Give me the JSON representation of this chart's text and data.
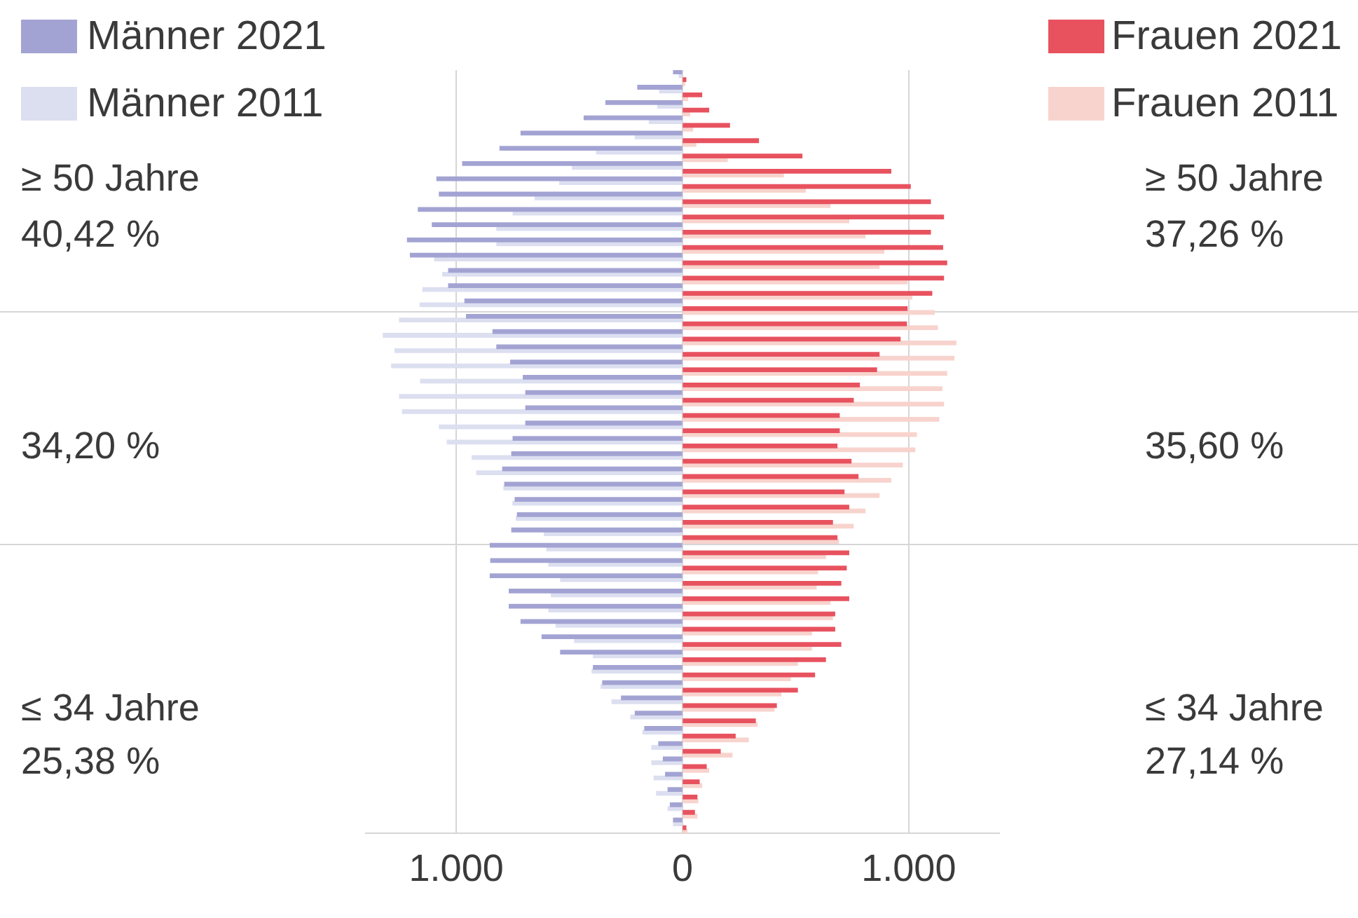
{
  "chart_data": {
    "type": "bar",
    "orientation": "horizontal",
    "categories": [
      null,
      null,
      null,
      null,
      null,
      null,
      null,
      null,
      null,
      null,
      null,
      null,
      null,
      null,
      null,
      null,
      null,
      null,
      null,
      null,
      null,
      null,
      null,
      null,
      null,
      null,
      null,
      null,
      null,
      null,
      null,
      null,
      null,
      null,
      null,
      null,
      null,
      null,
      null,
      null,
      null,
      null,
      null,
      null,
      null,
      null,
      null,
      null,
      null,
      null
    ],
    "series": [
      {
        "name": "Männer 2021",
        "color": "#a3a3d3",
        "values": [
          -40,
          -198,
          -339,
          -435,
          -714,
          -807,
          -972,
          -1086,
          -1075,
          -1168,
          -1106,
          -1216,
          -1203,
          -1034,
          -1034,
          -962,
          -955,
          -838,
          -821,
          -760,
          -704,
          -693,
          -693,
          -693,
          -749,
          -755,
          -795,
          -786,
          -740,
          -730,
          -755,
          -850,
          -848,
          -850,
          -766,
          -766,
          -714,
          -621,
          -539,
          -394,
          -353,
          -270,
          -209,
          -167,
          -105,
          -85,
          -75,
          -64,
          -54,
          -40
        ]
      },
      {
        "name": "Männer 2011",
        "color": "#dcdff0",
        "values": [
          -15,
          -101,
          -110,
          -147,
          -209,
          -380,
          -487,
          -543,
          -652,
          -749,
          -821,
          -821,
          -1096,
          -1060,
          -1148,
          -1160,
          -1251,
          -1323,
          -1271,
          -1286,
          -1158,
          -1251,
          -1238,
          -1075,
          -1040,
          -930,
          -910,
          -790,
          -750,
          -735,
          -611,
          -600,
          -591,
          -539,
          -580,
          -591,
          -559,
          -477,
          -394,
          -400,
          -360,
          -312,
          -229,
          -175,
          -136,
          -136,
          -126,
          -115,
          -64,
          -40
        ]
      },
      {
        "name": "Frauen 2021",
        "color": "#e8525f",
        "values": [
          15,
          85,
          116,
          208,
          336,
          528,
          921,
          1007,
          1096,
          1154,
          1096,
          1150,
          1168,
          1154,
          1102,
          993,
          990,
          962,
          869,
          858,
          782,
          755,
          693,
          693,
          683,
          745,
          776,
          714,
          735,
          663,
          683,
          735,
          724,
          700,
          735,
          673,
          673,
          700,
          632,
          584,
          508,
          415,
          322,
          233,
          167,
          105,
          74,
          64,
          53,
          15
        ]
      },
      {
        "name": "Frauen 2011",
        "color": "#f8d3cd",
        "values": [
          10,
          23,
          32,
          45,
          59,
          198,
          446,
          543,
          652,
          735,
          807,
          890,
          869,
          993,
          1014,
          1113,
          1127,
          1209,
          1200,
          1168,
          1147,
          1154,
          1133,
          1034,
          1027,
          972,
          921,
          869,
          807,
          755,
          690,
          632,
          597,
          591,
          652,
          663,
          570,
          570,
          508,
          477,
          435,
          405,
          330,
          291,
          219,
          116,
          85,
          68,
          64,
          20
        ]
      }
    ],
    "xlim": [
      -1400,
      1400
    ],
    "xticks": [
      {
        "value": -1000,
        "label": "1.000"
      },
      0,
      {
        "value": 1000,
        "label": "1.000"
      }
    ],
    "grid": "x",
    "legend": "top",
    "annotations": [
      "≥ 50 Jahre",
      "40,42 %",
      "34,20 %",
      "≤ 34 Jahre",
      "25,38 %",
      "≥ 50 Jahre",
      "37,26 %",
      "35,60 %",
      "≤ 34 Jahre",
      "27,14 %"
    ]
  }
}
